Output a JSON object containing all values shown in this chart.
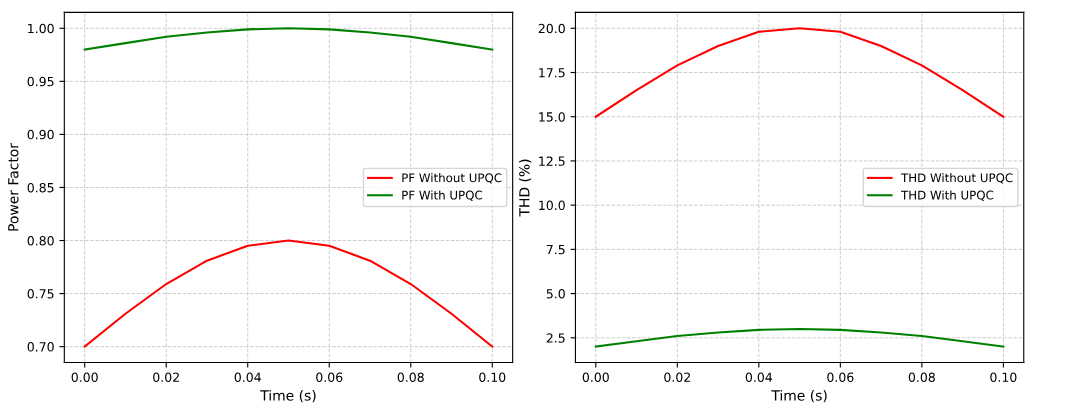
{
  "chart_data": [
    {
      "type": "line",
      "xlabel": "Time (s)",
      "ylabel": "Power Factor",
      "x": [
        0,
        0.01,
        0.02,
        0.03,
        0.04,
        0.05,
        0.06,
        0.07,
        0.08,
        0.09,
        0.1
      ],
      "series": [
        {
          "name": "PF Without UPQC",
          "color": "#ff0000",
          "values": [
            0.7,
            0.731,
            0.759,
            0.781,
            0.795,
            0.8,
            0.795,
            0.781,
            0.759,
            0.731,
            0.7
          ]
        },
        {
          "name": "PF With UPQC",
          "color": "#008000",
          "values": [
            0.98,
            0.986,
            0.992,
            0.996,
            0.999,
            1.0,
            0.999,
            0.996,
            0.992,
            0.986,
            0.98
          ]
        }
      ],
      "xlim": [
        -0.005,
        0.105
      ],
      "ylim": [
        0.685,
        1.015
      ],
      "xticks": [
        {
          "value": 0,
          "label": "0.00"
        },
        {
          "value": 0.02,
          "label": "0.02"
        },
        {
          "value": 0.04,
          "label": "0.04"
        },
        {
          "value": 0.06,
          "label": "0.06"
        },
        {
          "value": 0.08,
          "label": "0.08"
        },
        {
          "value": 0.1,
          "label": "0.10"
        }
      ],
      "yticks": [
        {
          "value": 0.7,
          "label": "0.70"
        },
        {
          "value": 0.75,
          "label": "0.75"
        },
        {
          "value": 0.8,
          "label": "0.80"
        },
        {
          "value": 0.85,
          "label": "0.85"
        },
        {
          "value": 0.9,
          "label": "0.90"
        },
        {
          "value": 0.95,
          "label": "0.95"
        },
        {
          "value": 1.0,
          "label": "1.00"
        }
      ],
      "grid": true,
      "legend": "right",
      "line_style": "solid"
    },
    {
      "type": "line",
      "xlabel": "Time (s)",
      "ylabel": "THD (%)",
      "x": [
        0,
        0.01,
        0.02,
        0.03,
        0.04,
        0.05,
        0.06,
        0.07,
        0.08,
        0.09,
        0.1
      ],
      "series": [
        {
          "name": "THD Without UPQC",
          "color": "#ff0000",
          "values": [
            15.0,
            16.5,
            17.9,
            19.0,
            19.8,
            20.0,
            19.8,
            19.0,
            17.9,
            16.5,
            15.0
          ]
        },
        {
          "name": "THD With UPQC",
          "color": "#008000",
          "values": [
            2.0,
            2.3,
            2.6,
            2.8,
            2.95,
            3.0,
            2.95,
            2.8,
            2.6,
            2.3,
            2.0
          ]
        }
      ],
      "xlim": [
        -0.005,
        0.105
      ],
      "ylim": [
        1.1,
        20.9
      ],
      "xticks": [
        {
          "value": 0,
          "label": "0.00"
        },
        {
          "value": 0.02,
          "label": "0.02"
        },
        {
          "value": 0.04,
          "label": "0.04"
        },
        {
          "value": 0.06,
          "label": "0.06"
        },
        {
          "value": 0.08,
          "label": "0.08"
        },
        {
          "value": 0.1,
          "label": "0.10"
        }
      ],
      "yticks": [
        {
          "value": 2.5,
          "label": "2.5"
        },
        {
          "value": 5,
          "label": "5.0"
        },
        {
          "value": 7.5,
          "label": "7.5"
        },
        {
          "value": 10,
          "label": "10.0"
        },
        {
          "value": 12.5,
          "label": "12.5"
        },
        {
          "value": 15,
          "label": "15.0"
        },
        {
          "value": 17.5,
          "label": "17.5"
        },
        {
          "value": 20,
          "label": "20.0"
        }
      ],
      "grid": true,
      "legend": "right",
      "line_style": "solid"
    }
  ]
}
